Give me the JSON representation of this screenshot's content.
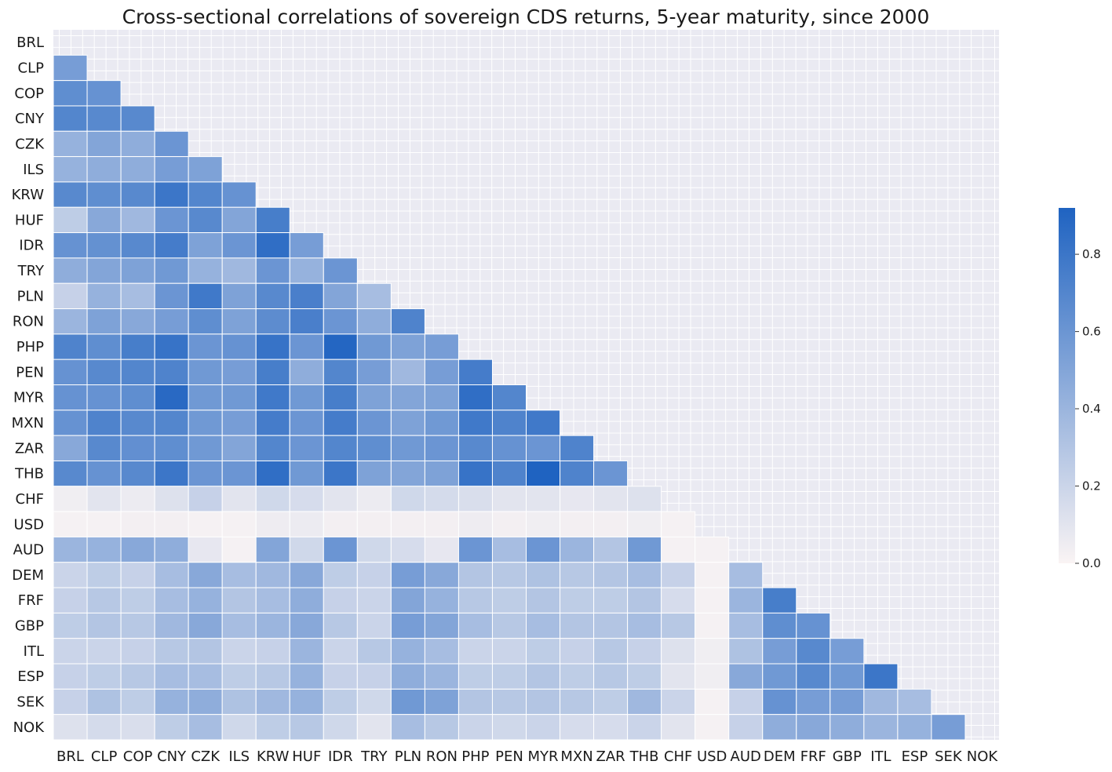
{
  "chart_data": {
    "type": "heatmap",
    "title": "Cross-sectional correlations of sovereign CDS returns, 5-year maturity, since 2000",
    "xlabel": "",
    "ylabel": "",
    "mask": "upper-triangle-including-diagonal",
    "labels": [
      "BRL",
      "CLP",
      "COP",
      "CNY",
      "CZK",
      "ILS",
      "KRW",
      "HUF",
      "IDR",
      "TRY",
      "PLN",
      "RON",
      "PHP",
      "PEN",
      "MYR",
      "MXN",
      "ZAR",
      "THB",
      "CHF",
      "USD",
      "AUD",
      "DEM",
      "FRF",
      "GBP",
      "ITL",
      "ESP",
      "SEK",
      "NOK"
    ],
    "rows": [
      [],
      [
        0.55
      ],
      [
        0.65,
        0.62
      ],
      [
        0.7,
        0.68,
        0.68
      ],
      [
        0.42,
        0.5,
        0.45,
        0.6
      ],
      [
        0.42,
        0.45,
        0.45,
        0.55,
        0.52
      ],
      [
        0.68,
        0.65,
        0.68,
        0.8,
        0.7,
        0.62
      ],
      [
        0.25,
        0.48,
        0.38,
        0.6,
        0.68,
        0.5,
        0.75
      ],
      [
        0.62,
        0.63,
        0.68,
        0.76,
        0.52,
        0.6,
        0.85,
        0.55
      ],
      [
        0.45,
        0.5,
        0.52,
        0.58,
        0.42,
        0.38,
        0.6,
        0.42,
        0.6
      ],
      [
        0.22,
        0.42,
        0.35,
        0.6,
        0.78,
        0.52,
        0.68,
        0.74,
        0.5,
        0.35
      ],
      [
        0.4,
        0.52,
        0.48,
        0.55,
        0.65,
        0.52,
        0.66,
        0.74,
        0.6,
        0.45,
        0.72
      ],
      [
        0.72,
        0.65,
        0.75,
        0.82,
        0.6,
        0.62,
        0.82,
        0.6,
        0.9,
        0.58,
        0.52,
        0.55
      ],
      [
        0.62,
        0.68,
        0.7,
        0.72,
        0.58,
        0.55,
        0.75,
        0.45,
        0.7,
        0.55,
        0.38,
        0.55,
        0.76
      ],
      [
        0.62,
        0.62,
        0.65,
        0.88,
        0.58,
        0.58,
        0.78,
        0.58,
        0.75,
        0.52,
        0.5,
        0.52,
        0.85,
        0.7
      ],
      [
        0.62,
        0.72,
        0.68,
        0.7,
        0.58,
        0.55,
        0.76,
        0.6,
        0.76,
        0.6,
        0.52,
        0.58,
        0.78,
        0.72,
        0.78
      ],
      [
        0.48,
        0.68,
        0.64,
        0.65,
        0.58,
        0.5,
        0.7,
        0.6,
        0.7,
        0.65,
        0.58,
        0.6,
        0.68,
        0.62,
        0.6,
        0.72
      ],
      [
        0.68,
        0.62,
        0.68,
        0.8,
        0.6,
        0.6,
        0.85,
        0.58,
        0.8,
        0.52,
        0.5,
        0.52,
        0.82,
        0.72,
        0.92,
        0.72,
        0.6
      ],
      [
        0.04,
        0.1,
        0.06,
        0.12,
        0.22,
        0.1,
        0.18,
        0.15,
        0.1,
        0.06,
        0.18,
        0.16,
        0.14,
        0.1,
        0.1,
        0.08,
        0.1,
        0.12
      ],
      [
        0.02,
        0.02,
        0.03,
        0.03,
        0.02,
        0.02,
        0.05,
        0.06,
        0.03,
        0.03,
        0.03,
        0.03,
        0.05,
        0.03,
        0.04,
        0.03,
        0.03,
        0.04,
        0.02
      ],
      [
        0.4,
        0.42,
        0.48,
        0.45,
        0.08,
        0.02,
        0.5,
        0.18,
        0.6,
        0.18,
        0.15,
        0.08,
        0.6,
        0.35,
        0.6,
        0.4,
        0.3,
        0.58,
        0.02,
        0.02
      ],
      [
        0.2,
        0.25,
        0.22,
        0.35,
        0.48,
        0.35,
        0.38,
        0.48,
        0.25,
        0.22,
        0.55,
        0.48,
        0.3,
        0.28,
        0.32,
        0.28,
        0.3,
        0.35,
        0.22,
        0.02,
        0.35
      ],
      [
        0.22,
        0.28,
        0.25,
        0.35,
        0.42,
        0.3,
        0.35,
        0.45,
        0.22,
        0.2,
        0.5,
        0.42,
        0.28,
        0.25,
        0.3,
        0.25,
        0.25,
        0.3,
        0.15,
        0.02,
        0.4,
        0.75
      ],
      [
        0.25,
        0.3,
        0.28,
        0.38,
        0.48,
        0.35,
        0.4,
        0.48,
        0.28,
        0.2,
        0.55,
        0.5,
        0.35,
        0.28,
        0.35,
        0.3,
        0.3,
        0.35,
        0.28,
        0.02,
        0.35,
        0.65,
        0.62
      ],
      [
        0.2,
        0.2,
        0.22,
        0.28,
        0.3,
        0.2,
        0.22,
        0.4,
        0.2,
        0.28,
        0.42,
        0.35,
        0.2,
        0.2,
        0.25,
        0.22,
        0.28,
        0.22,
        0.12,
        0.04,
        0.32,
        0.55,
        0.68,
        0.55
      ],
      [
        0.22,
        0.25,
        0.28,
        0.35,
        0.35,
        0.25,
        0.28,
        0.42,
        0.22,
        0.22,
        0.45,
        0.4,
        0.25,
        0.25,
        0.3,
        0.25,
        0.28,
        0.25,
        0.1,
        0.04,
        0.48,
        0.58,
        0.68,
        0.58,
        0.8
      ],
      [
        0.22,
        0.32,
        0.25,
        0.42,
        0.45,
        0.32,
        0.38,
        0.42,
        0.25,
        0.18,
        0.58,
        0.52,
        0.3,
        0.28,
        0.3,
        0.28,
        0.25,
        0.38,
        0.2,
        0.02,
        0.22,
        0.62,
        0.55,
        0.55,
        0.38,
        0.35
      ],
      [
        0.12,
        0.16,
        0.14,
        0.25,
        0.35,
        0.18,
        0.25,
        0.28,
        0.18,
        0.1,
        0.35,
        0.28,
        0.2,
        0.18,
        0.2,
        0.15,
        0.15,
        0.2,
        0.1,
        0.02,
        0.22,
        0.45,
        0.48,
        0.45,
        0.4,
        0.42,
        0.55
      ]
    ],
    "colorbar": {
      "vmin": 0.0,
      "vmax": 0.92,
      "ticks": [
        0.0,
        0.2,
        0.4,
        0.6,
        0.8
      ],
      "tick_labels": [
        "0.0",
        "0.2",
        "0.4",
        "0.6",
        "0.8"
      ],
      "colors": [
        "#faf4f4",
        "#1f63c1"
      ]
    },
    "background_color": "#eaeaf2"
  }
}
